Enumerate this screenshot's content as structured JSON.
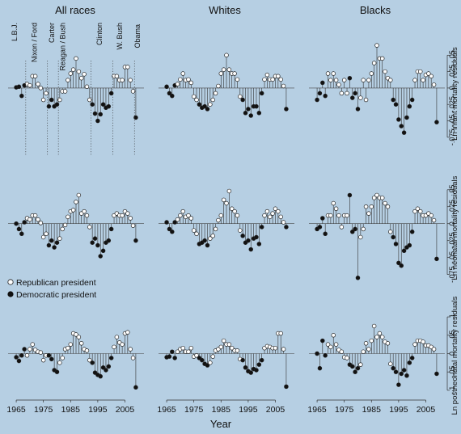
{
  "chart_data": {
    "type": "lollipop",
    "columns": [
      "All races",
      "Whites",
      "Blacks"
    ],
    "row_axis_labels": [
      "Ln infant mortality residuals",
      "Ln neonatal mortality residuals",
      "Ln postneonatal mortality residuals"
    ],
    "xlabel": "Year",
    "x_ticks": [
      "1965",
      "1975",
      "1985",
      "1995",
      "2005"
    ],
    "xlim": [
      1962,
      2012
    ],
    "y_axes": [
      {
        "ylim": [
          -0.09,
          0.075
        ],
        "ticks": [
          0.05,
          0.025,
          0,
          -0.025,
          -0.05,
          -0.075
        ],
        "tick_labels": [
          ".05",
          ".025",
          "0",
          "-.025",
          "-.05",
          "-.075"
        ]
      },
      {
        "ylim": [
          -0.085,
          0.07
        ],
        "ticks": [
          0.05,
          0.025,
          0,
          -0.025,
          -0.05,
          -0.075
        ],
        "tick_labels": [
          ".05",
          ".025",
          "0",
          "-.025",
          "-.05",
          "-.075"
        ]
      },
      {
        "ylim": [
          -0.12,
          0.12
        ],
        "ticks": [
          0.1,
          0.05,
          0,
          -0.05,
          -0.1
        ],
        "tick_labels": [
          ".1",
          ".05",
          "0",
          "-.05",
          "-.1"
        ]
      }
    ],
    "presidencies": [
      {
        "label": "L.B.J.",
        "start": 1964,
        "party": "D"
      },
      {
        "label": "Nixon / Ford",
        "start": 1969,
        "party": "R"
      },
      {
        "label": "Carter",
        "start": 1977,
        "party": "D"
      },
      {
        "label": "Reagan / Bush",
        "start": 1981,
        "party": "R"
      },
      {
        "label": "Clinton",
        "start": 1993,
        "party": "D"
      },
      {
        "label": "W. Bush",
        "start": 2001,
        "party": "R"
      },
      {
        "label": "Obama",
        "start": 2009,
        "party": "D"
      }
    ],
    "legend": {
      "republican": "Republican president",
      "democratic": "Democratic president"
    },
    "start_year": 1965,
    "series": [
      {
        "values": [
          0.001,
          0.002,
          -0.012,
          0.004,
          0.006,
          0.004,
          0.018,
          0.018,
          0.006,
          0.0,
          -0.018,
          -0.008,
          -0.028,
          -0.018,
          -0.028,
          -0.025,
          -0.018,
          -0.005,
          -0.005,
          0.012,
          0.022,
          0.028,
          0.045,
          0.025,
          0.015,
          0.021,
          0.002,
          -0.018,
          -0.025,
          -0.039,
          -0.05,
          -0.04,
          -0.025,
          -0.03,
          -0.028,
          -0.008,
          0.018,
          0.018,
          0.012,
          0.012,
          0.032,
          0.032,
          0.012,
          -0.005,
          -0.045
        ]
      },
      {
        "values": [
          0.002,
          -0.008,
          -0.012,
          0.004,
          0.006,
          0.013,
          0.022,
          0.012,
          0.013,
          0.008,
          -0.013,
          -0.018,
          -0.025,
          -0.03,
          -0.028,
          -0.032,
          -0.025,
          -0.018,
          -0.008,
          0.003,
          0.022,
          0.028,
          0.05,
          0.028,
          0.022,
          0.022,
          0.013,
          -0.013,
          -0.018,
          -0.038,
          -0.032,
          -0.042,
          -0.028,
          -0.028,
          -0.038,
          -0.008,
          0.013,
          0.02,
          0.013,
          0.013,
          0.018,
          0.018,
          0.013,
          0.003,
          -0.032
        ]
      },
      {
        "values": [
          -0.018,
          -0.008,
          0.008,
          -0.012,
          0.022,
          0.012,
          0.022,
          0.012,
          0.005,
          -0.008,
          0.012,
          -0.008,
          0.015,
          -0.015,
          -0.008,
          -0.032,
          -0.015,
          0.012,
          -0.018,
          0.012,
          0.022,
          0.038,
          0.065,
          0.045,
          0.045,
          0.025,
          0.015,
          0.012,
          -0.018,
          -0.025,
          -0.048,
          -0.058,
          -0.068,
          -0.045,
          -0.028,
          -0.018,
          0.012,
          0.025,
          0.025,
          0.012,
          0.02,
          0.022,
          0.018,
          0.005,
          -0.052
        ]
      },
      {
        "values": [
          0.0,
          -0.008,
          -0.015,
          0.002,
          0.008,
          0.006,
          0.012,
          0.012,
          0.006,
          0.001,
          -0.02,
          -0.015,
          -0.032,
          -0.025,
          -0.035,
          -0.028,
          -0.022,
          -0.008,
          -0.002,
          0.01,
          0.018,
          0.02,
          0.032,
          0.042,
          0.015,
          0.018,
          0.012,
          -0.005,
          -0.028,
          -0.022,
          -0.032,
          -0.048,
          -0.04,
          -0.028,
          -0.025,
          -0.008,
          0.012,
          0.015,
          0.012,
          0.012,
          0.018,
          0.015,
          0.008,
          -0.003,
          -0.025
        ]
      },
      {
        "values": [
          0.002,
          -0.008,
          -0.012,
          0.002,
          0.006,
          0.012,
          0.018,
          0.01,
          0.012,
          0.008,
          -0.01,
          -0.015,
          -0.03,
          -0.028,
          -0.025,
          -0.032,
          -0.022,
          -0.018,
          -0.008,
          0.005,
          0.012,
          0.035,
          0.03,
          0.048,
          0.022,
          0.018,
          0.012,
          -0.01,
          -0.018,
          -0.028,
          -0.025,
          -0.038,
          -0.022,
          -0.02,
          -0.03,
          -0.005,
          0.012,
          0.018,
          0.01,
          0.015,
          0.022,
          0.018,
          0.01,
          0.002,
          -0.005
        ]
      },
      {
        "values": [
          -0.008,
          -0.005,
          0.008,
          -0.015,
          0.012,
          0.012,
          0.03,
          0.022,
          0.012,
          -0.005,
          0.012,
          0.012,
          0.042,
          -0.012,
          -0.008,
          -0.08,
          -0.02,
          -0.008,
          0.025,
          0.015,
          0.025,
          0.038,
          0.042,
          0.038,
          0.038,
          0.03,
          0.025,
          -0.012,
          -0.02,
          -0.03,
          -0.058,
          -0.062,
          -0.04,
          -0.035,
          -0.032,
          -0.012,
          0.018,
          0.022,
          0.018,
          0.012,
          0.012,
          0.015,
          0.012,
          0.005,
          -0.052
        ]
      },
      {
        "values": [
          -0.01,
          -0.02,
          -0.005,
          0.012,
          -0.005,
          0.012,
          0.025,
          0.01,
          0.005,
          0.003,
          -0.018,
          -0.005,
          -0.005,
          -0.015,
          -0.045,
          -0.05,
          -0.025,
          -0.012,
          0.012,
          0.015,
          0.025,
          0.055,
          0.052,
          0.045,
          0.028,
          0.012,
          0.008,
          -0.018,
          -0.025,
          -0.052,
          -0.058,
          -0.062,
          -0.038,
          -0.045,
          -0.035,
          -0.012,
          0.018,
          0.045,
          0.03,
          0.025,
          0.055,
          0.058,
          0.012,
          -0.012,
          -0.092
        ]
      },
      {
        "values": [
          -0.01,
          -0.008,
          0.005,
          -0.012,
          0.005,
          0.012,
          0.015,
          0.005,
          0.005,
          0.015,
          -0.008,
          -0.005,
          -0.012,
          -0.018,
          -0.028,
          -0.032,
          -0.025,
          -0.008,
          0.008,
          0.012,
          0.018,
          0.035,
          0.025,
          0.025,
          0.015,
          0.008,
          0.008,
          -0.015,
          -0.018,
          -0.038,
          -0.048,
          -0.052,
          -0.042,
          -0.045,
          -0.03,
          -0.018,
          0.015,
          0.02,
          0.018,
          0.015,
          0.015,
          0.055,
          0.055,
          0.012,
          -0.09
        ]
      },
      {
        "values": [
          0.0,
          -0.04,
          0.035,
          -0.005,
          0.025,
          0.018,
          0.05,
          0.025,
          0.01,
          0.005,
          -0.01,
          -0.012,
          -0.03,
          -0.035,
          -0.05,
          -0.04,
          -0.03,
          0.005,
          0.028,
          0.012,
          0.035,
          0.075,
          0.045,
          0.055,
          0.045,
          0.032,
          0.028,
          -0.028,
          -0.04,
          -0.05,
          -0.085,
          -0.055,
          -0.045,
          -0.06,
          -0.025,
          -0.012,
          0.025,
          0.035,
          0.035,
          0.032,
          0.022,
          0.022,
          0.018,
          0.012,
          -0.055
        ]
      }
    ]
  }
}
